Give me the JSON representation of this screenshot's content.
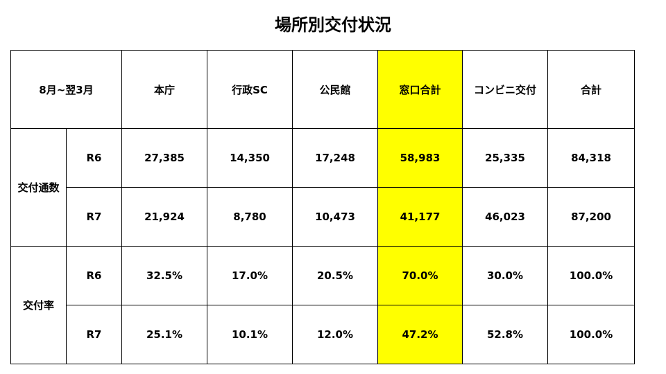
{
  "title": "場所別交付状況",
  "colors": {
    "highlight": "#ffff00",
    "border": "#000000"
  },
  "chart_data": {
    "type": "table",
    "title": "場所別交付状況",
    "corner_label": "8月~翌3月",
    "columns": [
      "本庁",
      "行政SC",
      "公民館",
      "窓口合計",
      "コンビニ交付",
      "合計"
    ],
    "highlight_column": "窓口合計",
    "groups": [
      {
        "label": "交付通数",
        "rows": [
          {
            "label": "R6",
            "values": [
              "27,385",
              "14,350",
              "17,248",
              "58,983",
              "25,335",
              "84,318"
            ]
          },
          {
            "label": "R7",
            "values": [
              "21,924",
              "8,780",
              "10,473",
              "41,177",
              "46,023",
              "87,200"
            ]
          }
        ]
      },
      {
        "label": "交付率",
        "rows": [
          {
            "label": "R6",
            "values": [
              "32.5%",
              "17.0%",
              "20.5%",
              "70.0%",
              "30.0%",
              "100.0%"
            ]
          },
          {
            "label": "R7",
            "values": [
              "25.1%",
              "10.1%",
              "12.0%",
              "47.2%",
              "52.8%",
              "100.0%"
            ]
          }
        ]
      }
    ]
  }
}
